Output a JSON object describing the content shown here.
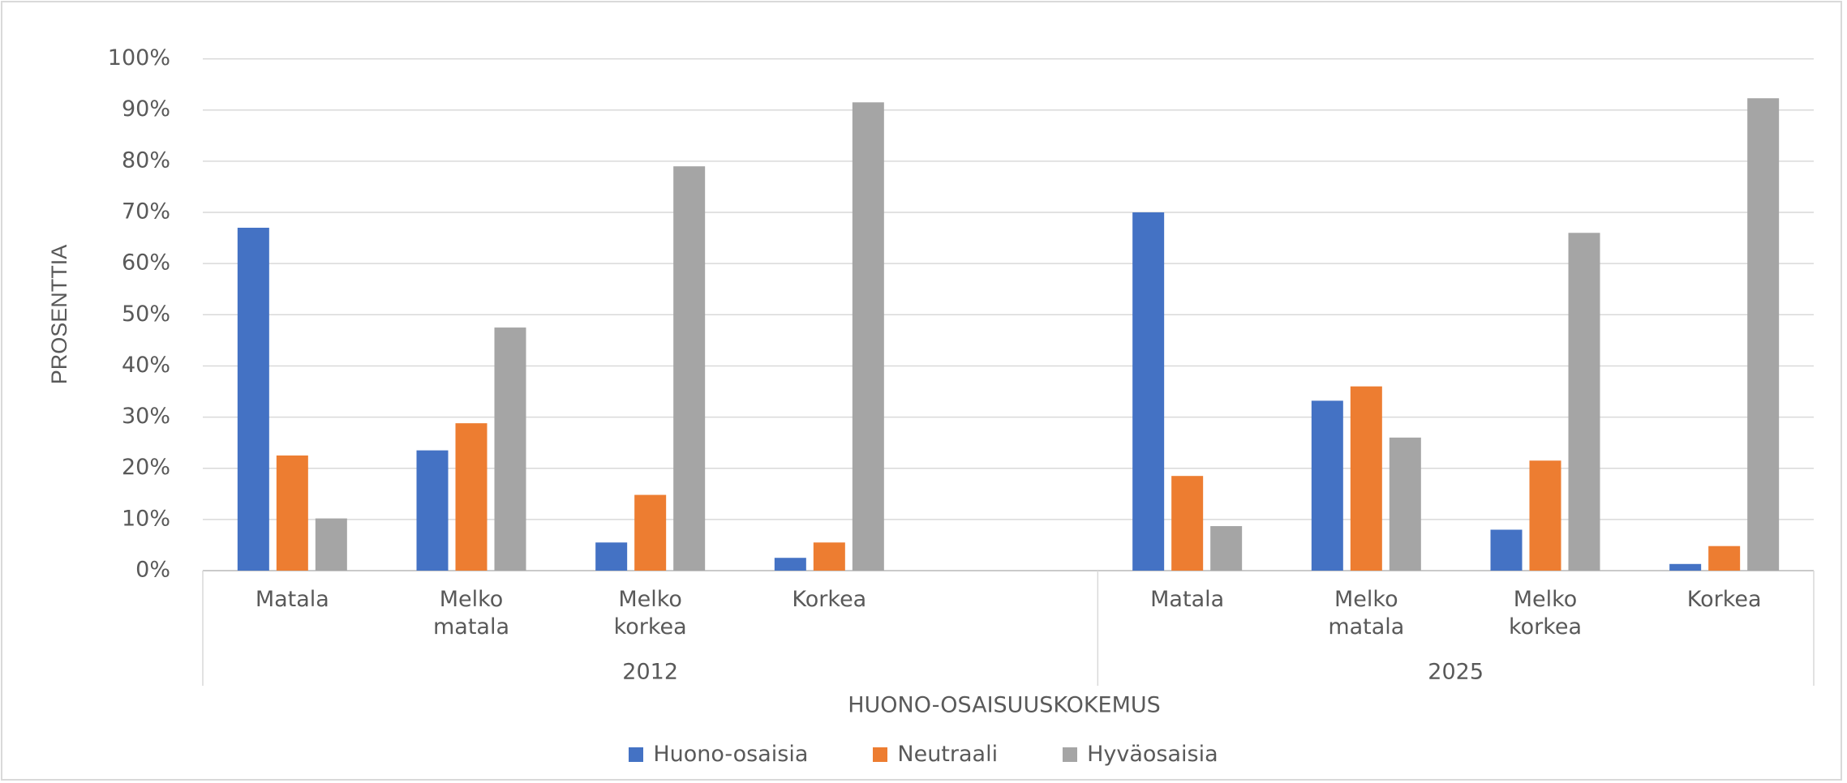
{
  "chart_data": {
    "type": "bar",
    "y_axis_label": "PROSENTTIA",
    "x_axis_label": "HUONO-OSAISUUSKOKEMUS",
    "groups": [
      {
        "name": "2012",
        "categories": [
          "Matala",
          "Melko matala",
          "Melko korkea",
          "Korkea",
          null
        ]
      },
      {
        "name": "2025",
        "categories": [
          "Matala",
          "Melko matala",
          "Melko korkea",
          "Korkea"
        ]
      }
    ],
    "series": [
      {
        "name": "Huono-osaisia",
        "color": "#4472c4",
        "values": [
          67,
          23.5,
          5.5,
          2.5,
          null,
          70,
          33.2,
          8,
          1.3
        ]
      },
      {
        "name": "Neutraali",
        "color": "#ed7d31",
        "values": [
          22.5,
          28.8,
          14.8,
          5.5,
          null,
          18.5,
          36,
          21.5,
          4.8
        ]
      },
      {
        "name": "Hyväosaisia",
        "color": "#a5a5a5",
        "values": [
          10.2,
          47.5,
          79,
          91.5,
          null,
          8.7,
          26,
          66,
          92.3
        ]
      }
    ],
    "ylim": [
      0,
      100
    ],
    "yticks": [
      {
        "value": 0,
        "label": "0%"
      },
      {
        "value": 10,
        "label": "10%"
      },
      {
        "value": 20,
        "label": "20%"
      },
      {
        "value": 30,
        "label": "30%"
      },
      {
        "value": 40,
        "label": "40%"
      },
      {
        "value": 50,
        "label": "50%"
      },
      {
        "value": 60,
        "label": "60%"
      },
      {
        "value": 70,
        "label": "70%"
      },
      {
        "value": 80,
        "label": "80%"
      },
      {
        "value": 90,
        "label": "90%"
      },
      {
        "value": 100,
        "label": "100%"
      }
    ],
    "grid": true,
    "legend": "bottom"
  }
}
